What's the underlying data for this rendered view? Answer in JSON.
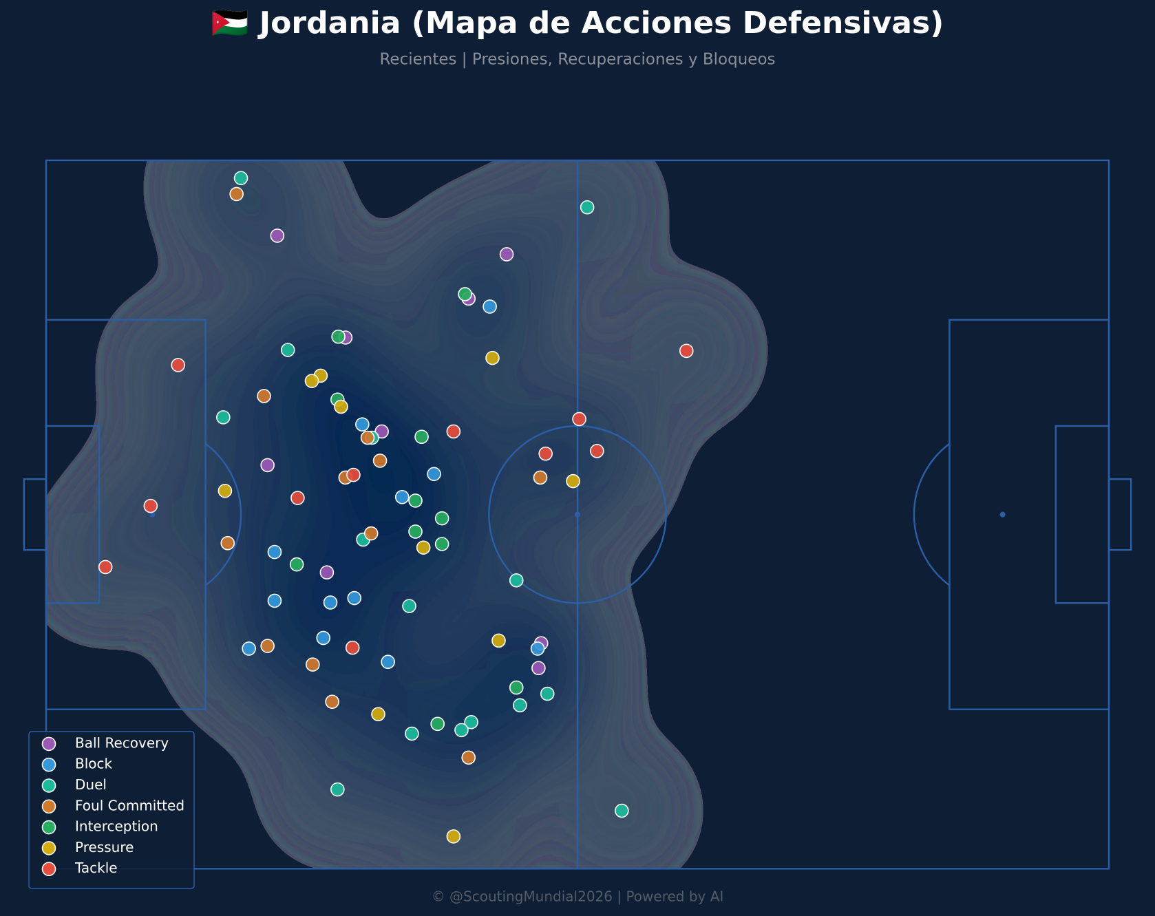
{
  "chart_data": {
    "type": "scatter",
    "title": "🇯🇴 Jordania (Mapa de Acciones Defensivas)",
    "subtitle": "Recientes | Presiones, Recuperaciones y Bloqueos",
    "credit": "© @ScoutingMundial2026 | Powered by AI",
    "xlim": [
      0,
      120
    ],
    "ylim": [
      0,
      80
    ],
    "legend": "lower left",
    "series": [
      {
        "name": "Ball Recovery",
        "color": "#9b59b6",
        "x": [
          26.1,
          52.0,
          47.7,
          33.8,
          37.9,
          25.0,
          31.7,
          55.9,
          55.6
        ],
        "y": [
          8.5,
          10.6,
          15.6,
          20.0,
          30.6,
          34.4,
          46.5,
          54.5,
          57.3
        ]
      },
      {
        "name": "Block",
        "color": "#3498db",
        "x": [
          50.1,
          35.7,
          43.8,
          40.2,
          25.8,
          25.8,
          32.1,
          34.8,
          31.3,
          22.9,
          38.6,
          55.5
        ],
        "y": [
          16.5,
          29.8,
          35.4,
          38.0,
          44.2,
          49.7,
          49.9,
          49.4,
          53.9,
          55.1,
          56.6,
          55.1
        ]
      },
      {
        "name": "Duel",
        "color": "#1abc9c",
        "x": [
          22.0,
          61.1,
          27.3,
          20.0,
          36.8,
          35.8,
          53.1,
          41.0,
          53.5,
          56.6,
          48.0,
          46.9,
          32.9,
          65.0,
          41.3
        ],
        "y": [
          2.0,
          5.3,
          21.4,
          29.0,
          31.3,
          42.8,
          47.4,
          50.3,
          61.5,
          60.2,
          63.4,
          64.3,
          71.0,
          73.4,
          64.7
        ]
      },
      {
        "name": "Foul Committed",
        "color": "#d07a2c",
        "x": [
          21.5,
          24.6,
          36.3,
          37.7,
          33.8,
          55.8,
          36.7,
          20.5,
          25.0,
          30.1,
          32.3,
          47.7
        ],
        "y": [
          3.8,
          26.6,
          31.3,
          33.9,
          35.8,
          35.8,
          42.1,
          43.2,
          54.8,
          56.9,
          61.1,
          67.4
        ]
      },
      {
        "name": "Interception",
        "color": "#27ae60",
        "x": [
          47.3,
          33.0,
          32.9,
          42.4,
          41.7,
          44.7,
          41.7,
          44.7,
          28.3,
          53.1,
          44.2
        ],
        "y": [
          15.1,
          19.9,
          27.0,
          31.2,
          38.4,
          40.4,
          41.9,
          43.3,
          45.6,
          59.5,
          63.6
        ]
      },
      {
        "name": "Pressure",
        "color": "#d4ac0d",
        "x": [
          50.4,
          31.0,
          30.0,
          33.3,
          59.5,
          20.2,
          42.6,
          51.1,
          37.5,
          46.0
        ],
        "y": [
          22.3,
          24.3,
          24.9,
          27.8,
          36.2,
          37.3,
          43.7,
          54.2,
          62.5,
          76.3
        ]
      },
      {
        "name": "Tackle",
        "color": "#e74c3c",
        "x": [
          72.3,
          14.9,
          46.0,
          60.2,
          56.4,
          62.2,
          34.7,
          11.8,
          28.4,
          6.7,
          34.6
        ],
        "y": [
          21.5,
          23.1,
          30.6,
          29.2,
          33.1,
          32.8,
          35.5,
          39.0,
          38.1,
          45.9,
          55.0
        ]
      }
    ]
  }
}
